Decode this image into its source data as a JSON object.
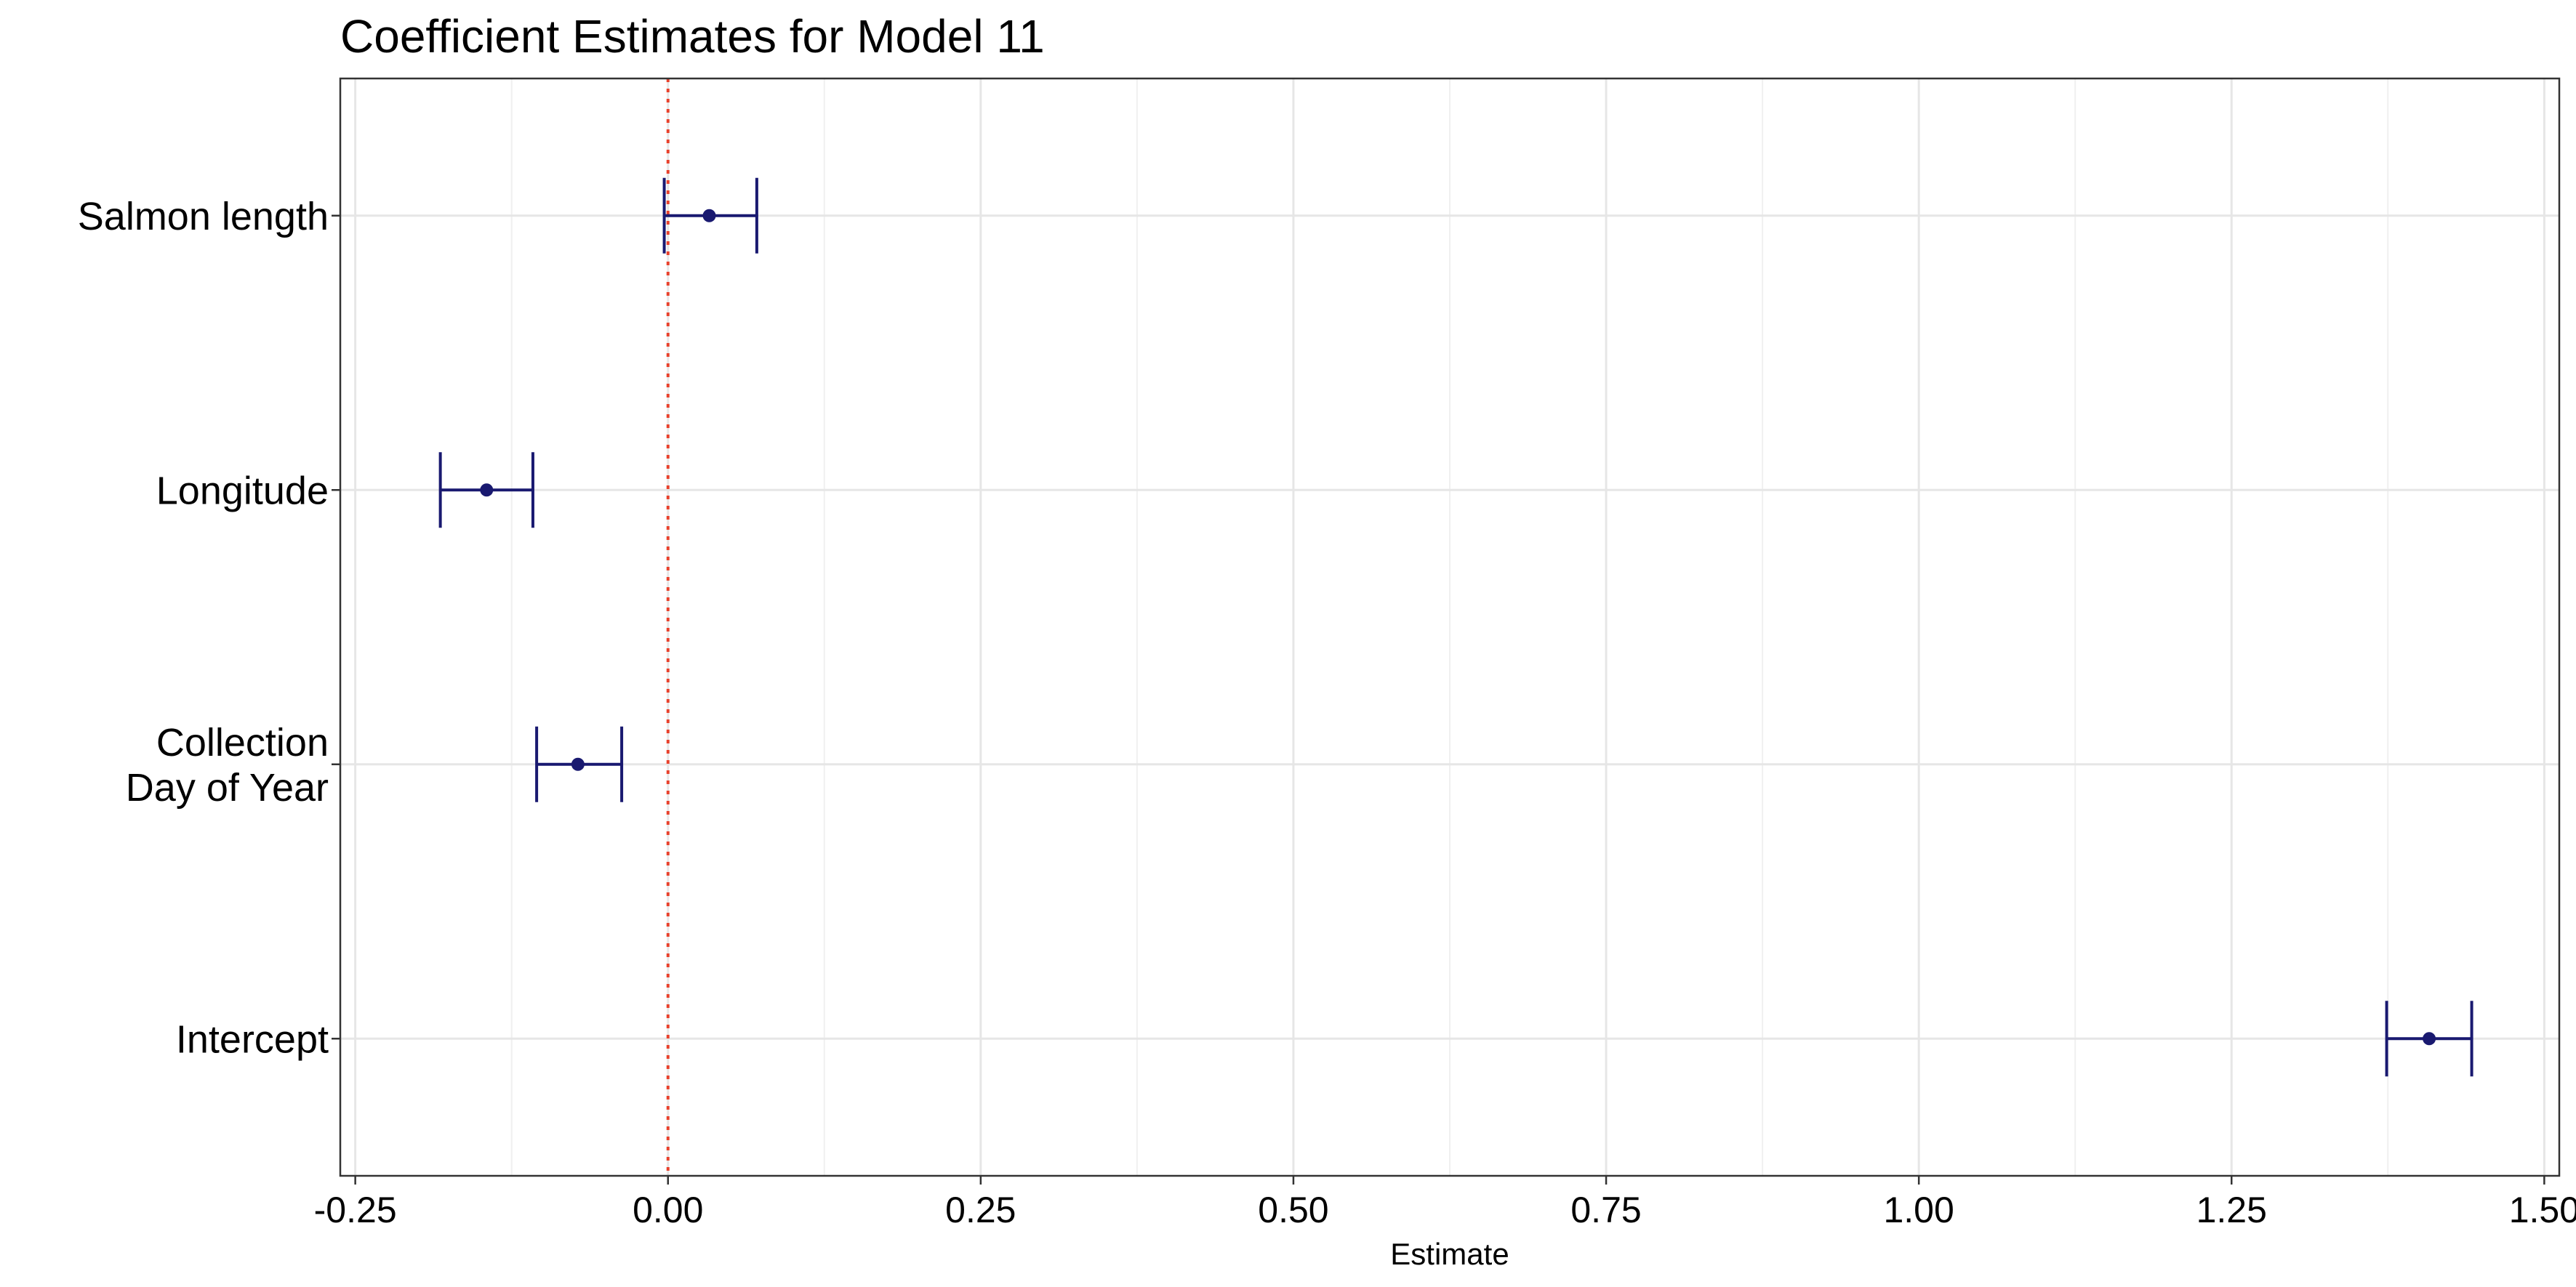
{
  "chart_data": {
    "type": "errorbar",
    "title": "Coefficient Estimates for Model 11",
    "xlabel": "Estimate",
    "ylabel": "",
    "xlim": [
      -0.262,
      1.512
    ],
    "x_ticks": [
      -0.25,
      0.0,
      0.25,
      0.5,
      0.75,
      1.0,
      1.25,
      1.5
    ],
    "x_tick_labels": [
      "-0.25",
      "0.00",
      "0.25",
      "0.50",
      "0.75",
      "1.00",
      "1.25",
      "1.50"
    ],
    "reference_line": {
      "x": 0,
      "color": "#e8412c",
      "style": "dotted"
    },
    "grid": true,
    "legend": "none",
    "colors": {
      "marks": "#191970"
    },
    "points": [
      {
        "label_lines": [
          "Salmon length"
        ],
        "estimate": 0.033,
        "lower": -0.003,
        "upper": 0.071
      },
      {
        "label_lines": [
          "Longitude"
        ],
        "estimate": -0.145,
        "lower": -0.182,
        "upper": -0.108
      },
      {
        "label_lines": [
          "Collection",
          "Day of Year"
        ],
        "estimate": -0.072,
        "lower": -0.105,
        "upper": -0.037
      },
      {
        "label_lines": [
          "Intercept"
        ],
        "estimate": 1.408,
        "lower": 1.374,
        "upper": 1.442
      }
    ]
  }
}
